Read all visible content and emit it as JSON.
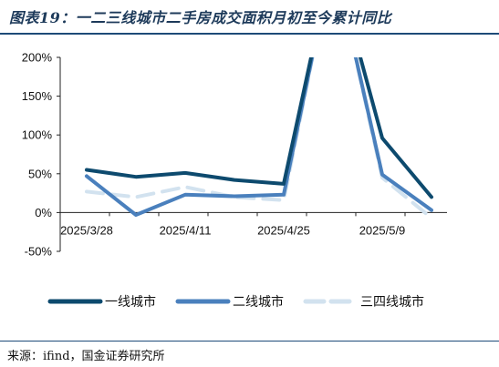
{
  "title": "图表19：一二三线城市二手房成交面积月初至今累计同比",
  "source": "来源：ifind，国金证券研究所",
  "chart_data": {
    "type": "line",
    "x": [
      "2025/3/28",
      "2025/4/4",
      "2025/4/11",
      "2025/4/18",
      "2025/4/25",
      "2025/5/2",
      "2025/5/9",
      "2025/5/16"
    ],
    "x_tick_labels": [
      "2025/3/28",
      "2025/4/11",
      "2025/4/25",
      "2025/5/9"
    ],
    "y_ticks": [
      "200%",
      "150%",
      "100%",
      "50%",
      "0%",
      "-50%"
    ],
    "ylim": [
      -50,
      200
    ],
    "series": [
      {
        "name": "一线城市",
        "color": "#0d4a6e",
        "dash": "",
        "values": [
          55,
          46,
          51,
          42,
          37,
          330,
          96,
          20
        ]
      },
      {
        "name": "二线城市",
        "color": "#4a80bd",
        "dash": "",
        "values": [
          47,
          -3,
          23,
          21,
          23,
          330,
          49,
          3
        ]
      },
      {
        "name": "三四线城市",
        "color": "#d2e2ef",
        "dash": "18 10",
        "values": [
          27,
          20,
          33,
          20,
          16,
          330,
          45,
          -7
        ]
      }
    ]
  }
}
